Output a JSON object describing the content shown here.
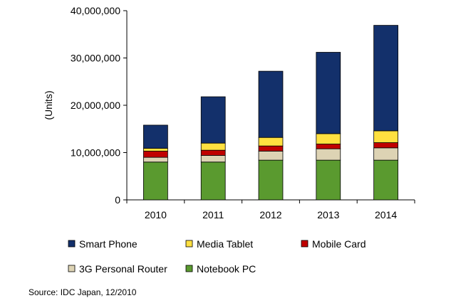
{
  "chart_data": {
    "type": "bar",
    "stacked": true,
    "ylabel": "(Units)",
    "xlabel": "",
    "ylim": [
      0,
      40000000
    ],
    "y_ticks": [
      0,
      10000000,
      20000000,
      30000000,
      40000000
    ],
    "y_tick_labels": [
      "0",
      "10,000,000",
      "20,000,000",
      "30,000,000",
      "40,000,000"
    ],
    "categories": [
      "2010",
      "2011",
      "2012",
      "2013",
      "2014"
    ],
    "series": [
      {
        "name": "Notebook PC",
        "color": "#5a9a2f",
        "values": [
          8000000,
          8000000,
          8400000,
          8400000,
          8400000
        ]
      },
      {
        "name": "3G Personal Router",
        "color": "#ddd3b4",
        "values": [
          1000000,
          1400000,
          1900000,
          2400000,
          2600000
        ]
      },
      {
        "name": "Mobile Card",
        "color": "#c00000",
        "values": [
          1300000,
          1100000,
          1100000,
          1000000,
          1100000
        ]
      },
      {
        "name": "Media Tablet",
        "color": "#ffe040",
        "values": [
          600000,
          1500000,
          1800000,
          2200000,
          2500000
        ]
      },
      {
        "name": "Smart Phone",
        "color": "#13306b",
        "values": [
          4900000,
          9800000,
          14000000,
          17200000,
          22300000
        ]
      }
    ],
    "legend_order": [
      "Smart Phone",
      "Media Tablet",
      "Mobile Card",
      "3G Personal Router",
      "Notebook PC"
    ],
    "legend_position": "bottom",
    "grid": false
  },
  "source": "Source: IDC Japan, 12/2010"
}
